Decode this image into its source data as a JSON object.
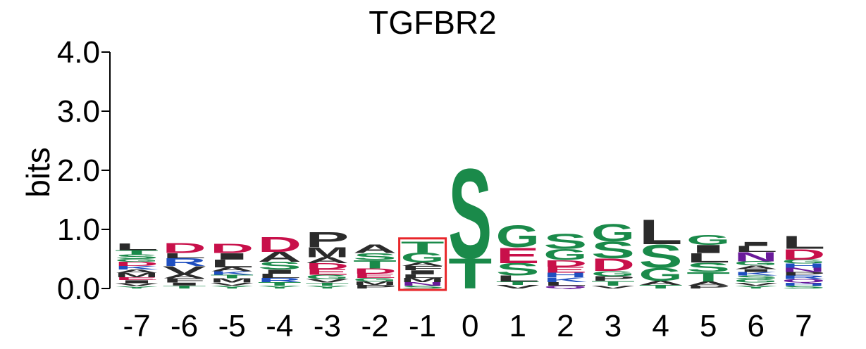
{
  "chart_data": {
    "type": "sequence-logo",
    "title": "TGFBR2",
    "ylabel": "bits",
    "ylim": [
      0,
      4
    ],
    "yticks": [
      "0.0",
      "1.0",
      "2.0",
      "3.0",
      "4.0"
    ],
    "highlight_position": "-1",
    "highlight_color": "#e8262a",
    "colors": {
      "black": "#2b2b2b",
      "green": "#1a8a4a",
      "red": "#c8104a",
      "blue": "#1f4fc0",
      "purple": "#6a1a9a"
    },
    "positions": [
      {
        "label": "-7",
        "letters": [
          {
            "aa": "Y",
            "h": 0.04,
            "c": "green"
          },
          {
            "aa": "V",
            "h": 0.05,
            "c": "black"
          },
          {
            "aa": "I",
            "h": 0.05,
            "c": "black"
          },
          {
            "aa": "E",
            "h": 0.05,
            "c": "red"
          },
          {
            "aa": "M",
            "h": 0.07,
            "c": "black"
          },
          {
            "aa": "A",
            "h": 0.06,
            "c": "black"
          },
          {
            "aa": "K",
            "h": 0.06,
            "c": "blue"
          },
          {
            "aa": "D",
            "h": 0.07,
            "c": "red"
          },
          {
            "aa": "G",
            "h": 0.05,
            "c": "green"
          },
          {
            "aa": "S",
            "h": 0.08,
            "c": "green"
          },
          {
            "aa": "T",
            "h": 0.07,
            "c": "green"
          },
          {
            "aa": "L",
            "h": 0.12,
            "c": "black"
          }
        ]
      },
      {
        "label": "-6",
        "letters": [
          {
            "aa": "T",
            "h": 0.05,
            "c": "green"
          },
          {
            "aa": "I",
            "h": 0.05,
            "c": "black"
          },
          {
            "aa": "F",
            "h": 0.07,
            "c": "black"
          },
          {
            "aa": "A",
            "h": 0.07,
            "c": "black"
          },
          {
            "aa": "V",
            "h": 0.14,
            "c": "black"
          },
          {
            "aa": "R",
            "h": 0.13,
            "c": "blue"
          },
          {
            "aa": "L",
            "h": 0.09,
            "c": "black"
          },
          {
            "aa": "D",
            "h": 0.17,
            "c": "red"
          }
        ]
      },
      {
        "label": "-5",
        "letters": [
          {
            "aa": "Y",
            "h": 0.05,
            "c": "green"
          },
          {
            "aa": "V",
            "h": 0.05,
            "c": "black"
          },
          {
            "aa": "M",
            "h": 0.07,
            "c": "black"
          },
          {
            "aa": "T",
            "h": 0.06,
            "c": "green"
          },
          {
            "aa": "K",
            "h": 0.06,
            "c": "blue"
          },
          {
            "aa": "A",
            "h": 0.07,
            "c": "black"
          },
          {
            "aa": "L",
            "h": 0.13,
            "c": "black"
          },
          {
            "aa": "I",
            "h": 0.11,
            "c": "black"
          },
          {
            "aa": "D",
            "h": 0.16,
            "c": "red"
          }
        ]
      },
      {
        "label": "-4",
        "letters": [
          {
            "aa": "Y",
            "h": 0.05,
            "c": "green"
          },
          {
            "aa": "T",
            "h": 0.06,
            "c": "green"
          },
          {
            "aa": "R",
            "h": 0.07,
            "c": "blue"
          },
          {
            "aa": "L",
            "h": 0.07,
            "c": "black"
          },
          {
            "aa": "I",
            "h": 0.07,
            "c": "black"
          },
          {
            "aa": "S",
            "h": 0.13,
            "c": "green"
          },
          {
            "aa": "A",
            "h": 0.17,
            "c": "black"
          },
          {
            "aa": "D",
            "h": 0.26,
            "c": "red"
          }
        ]
      },
      {
        "label": "-3",
        "letters": [
          {
            "aa": "Y",
            "h": 0.05,
            "c": "green"
          },
          {
            "aa": "T",
            "h": 0.05,
            "c": "green"
          },
          {
            "aa": "V",
            "h": 0.06,
            "c": "black"
          },
          {
            "aa": "G",
            "h": 0.07,
            "c": "green"
          },
          {
            "aa": "E",
            "h": 0.1,
            "c": "red"
          },
          {
            "aa": "D",
            "h": 0.1,
            "c": "red"
          },
          {
            "aa": "A",
            "h": 0.1,
            "c": "black"
          },
          {
            "aa": "M",
            "h": 0.17,
            "c": "black"
          },
          {
            "aa": "P",
            "h": 0.26,
            "c": "black"
          }
        ]
      },
      {
        "label": "-2",
        "letters": [
          {
            "aa": "P",
            "h": 0.06,
            "c": "black"
          },
          {
            "aa": "M",
            "h": 0.06,
            "c": "black"
          },
          {
            "aa": "G",
            "h": 0.06,
            "c": "green"
          },
          {
            "aa": "E",
            "h": 0.07,
            "c": "red"
          },
          {
            "aa": "D",
            "h": 0.09,
            "c": "red"
          },
          {
            "aa": "T",
            "h": 0.14,
            "c": "green"
          },
          {
            "aa": "S",
            "h": 0.12,
            "c": "green"
          },
          {
            "aa": "A",
            "h": 0.15,
            "c": "black"
          }
        ]
      },
      {
        "label": "-1",
        "letters": [
          {
            "aa": "S",
            "h": 0.05,
            "c": "green"
          },
          {
            "aa": "N",
            "h": 0.06,
            "c": "purple"
          },
          {
            "aa": "M",
            "h": 0.07,
            "c": "black"
          },
          {
            "aa": "L",
            "h": 0.06,
            "c": "black"
          },
          {
            "aa": "I",
            "h": 0.07,
            "c": "black"
          },
          {
            "aa": "F",
            "h": 0.07,
            "c": "black"
          },
          {
            "aa": "A",
            "h": 0.06,
            "c": "black"
          },
          {
            "aa": "G",
            "h": 0.17,
            "c": "green"
          },
          {
            "aa": "T",
            "h": 0.19,
            "c": "green"
          }
        ]
      },
      {
        "label": "0",
        "letters": [
          {
            "aa": "T",
            "h": 0.52,
            "c": "green"
          },
          {
            "aa": "S",
            "h": 1.55,
            "c": "green"
          }
        ]
      },
      {
        "label": "1",
        "letters": [
          {
            "aa": "V",
            "h": 0.06,
            "c": "black"
          },
          {
            "aa": "T",
            "h": 0.06,
            "c": "green"
          },
          {
            "aa": "L",
            "h": 0.1,
            "c": "black"
          },
          {
            "aa": "S",
            "h": 0.21,
            "c": "green"
          },
          {
            "aa": "E",
            "h": 0.27,
            "c": "red"
          },
          {
            "aa": "G",
            "h": 0.38,
            "c": "green"
          }
        ]
      },
      {
        "label": "2",
        "letters": [
          {
            "aa": "Q",
            "h": 0.05,
            "c": "purple"
          },
          {
            "aa": "L",
            "h": 0.06,
            "c": "black"
          },
          {
            "aa": "K",
            "h": 0.08,
            "c": "blue"
          },
          {
            "aa": "H",
            "h": 0.08,
            "c": "blue"
          },
          {
            "aa": "E",
            "h": 0.1,
            "c": "red"
          },
          {
            "aa": "D",
            "h": 0.11,
            "c": "red"
          },
          {
            "aa": "G",
            "h": 0.19,
            "c": "green"
          },
          {
            "aa": "S",
            "h": 0.26,
            "c": "green"
          }
        ]
      },
      {
        "label": "3",
        "letters": [
          {
            "aa": "V",
            "h": 0.05,
            "c": "black"
          },
          {
            "aa": "T",
            "h": 0.08,
            "c": "green"
          },
          {
            "aa": "P",
            "h": 0.08,
            "c": "black"
          },
          {
            "aa": "G",
            "h": 0.09,
            "c": "green"
          },
          {
            "aa": "D",
            "h": 0.21,
            "c": "red"
          },
          {
            "aa": "S",
            "h": 0.29,
            "c": "green"
          },
          {
            "aa": "G",
            "h": 0.3,
            "c": "green"
          }
        ]
      },
      {
        "label": "4",
        "letters": [
          {
            "aa": "T",
            "h": 0.06,
            "c": "green"
          },
          {
            "aa": "A",
            "h": 0.07,
            "c": "black"
          },
          {
            "aa": "G",
            "h": 0.22,
            "c": "green"
          },
          {
            "aa": "S",
            "h": 0.4,
            "c": "green"
          },
          {
            "aa": "L",
            "h": 0.43,
            "c": "black"
          }
        ]
      },
      {
        "label": "5",
        "letters": [
          {
            "aa": "P",
            "h": 0.05,
            "c": "black"
          },
          {
            "aa": "A",
            "h": 0.07,
            "c": "black"
          },
          {
            "aa": "T",
            "h": 0.16,
            "c": "green"
          },
          {
            "aa": "S",
            "h": 0.16,
            "c": "green"
          },
          {
            "aa": "L",
            "h": 0.16,
            "c": "black"
          },
          {
            "aa": "I",
            "h": 0.14,
            "c": "black"
          },
          {
            "aa": "G",
            "h": 0.17,
            "c": "green"
          }
        ]
      },
      {
        "label": "6",
        "letters": [
          {
            "aa": "Y",
            "h": 0.05,
            "c": "green"
          },
          {
            "aa": "V",
            "h": 0.05,
            "c": "black"
          },
          {
            "aa": "G",
            "h": 0.06,
            "c": "green"
          },
          {
            "aa": "S",
            "h": 0.06,
            "c": "green"
          },
          {
            "aa": "K",
            "h": 0.06,
            "c": "blue"
          },
          {
            "aa": "I",
            "h": 0.05,
            "c": "black"
          },
          {
            "aa": "A",
            "h": 0.06,
            "c": "black"
          },
          {
            "aa": "G",
            "h": 0.07,
            "c": "green"
          },
          {
            "aa": "N",
            "h": 0.16,
            "c": "purple"
          },
          {
            "aa": "L",
            "h": 0.1,
            "c": "black"
          },
          {
            "aa": "I",
            "h": 0.07,
            "c": "black"
          }
        ]
      },
      {
        "label": "7",
        "letters": [
          {
            "aa": "S",
            "h": 0.05,
            "c": "green"
          },
          {
            "aa": "H",
            "h": 0.05,
            "c": "blue"
          },
          {
            "aa": "Q",
            "h": 0.06,
            "c": "purple"
          },
          {
            "aa": "R",
            "h": 0.06,
            "c": "blue"
          },
          {
            "aa": "P",
            "h": 0.06,
            "c": "black"
          },
          {
            "aa": "N",
            "h": 0.07,
            "c": "purple"
          },
          {
            "aa": "H",
            "h": 0.07,
            "c": "blue"
          },
          {
            "aa": "G",
            "h": 0.07,
            "c": "green"
          },
          {
            "aa": "D",
            "h": 0.18,
            "c": "red"
          },
          {
            "aa": "L",
            "h": 0.22,
            "c": "black"
          }
        ]
      }
    ]
  }
}
